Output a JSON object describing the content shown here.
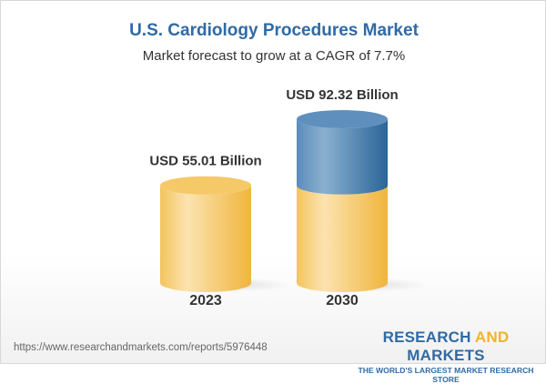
{
  "title": "U.S. Cardiology Procedures Market",
  "subtitle": "Market forecast to grow at a CAGR of 7.7%",
  "footer": {
    "url": "https://www.researchandmarkets.com/reports/5976448",
    "logo_part1": "RESEARCH ",
    "logo_part2": "AND",
    "logo_part3": " MARKETS",
    "logo_tagline": "THE WORLD'S LARGEST MARKET RESEARCH STORE"
  },
  "colors": {
    "title": "#2f6aa5",
    "base": "#f3c150",
    "growth": "#4a7fb0",
    "logo_accent": "#f0b429"
  },
  "chart_data": {
    "type": "bar",
    "style": "3d-cylinder",
    "title": "U.S. Cardiology Procedures Market",
    "subtitle": "Market forecast to grow at a CAGR of 7.7%",
    "categories": [
      "2023",
      "2030"
    ],
    "values": [
      55.01,
      92.32
    ],
    "data_labels": [
      "USD 55.01 Billion",
      "USD 92.32 Billion"
    ],
    "unit": "USD Billion",
    "base_segment_value": 55.01,
    "grid": false,
    "axes_visible": false
  }
}
